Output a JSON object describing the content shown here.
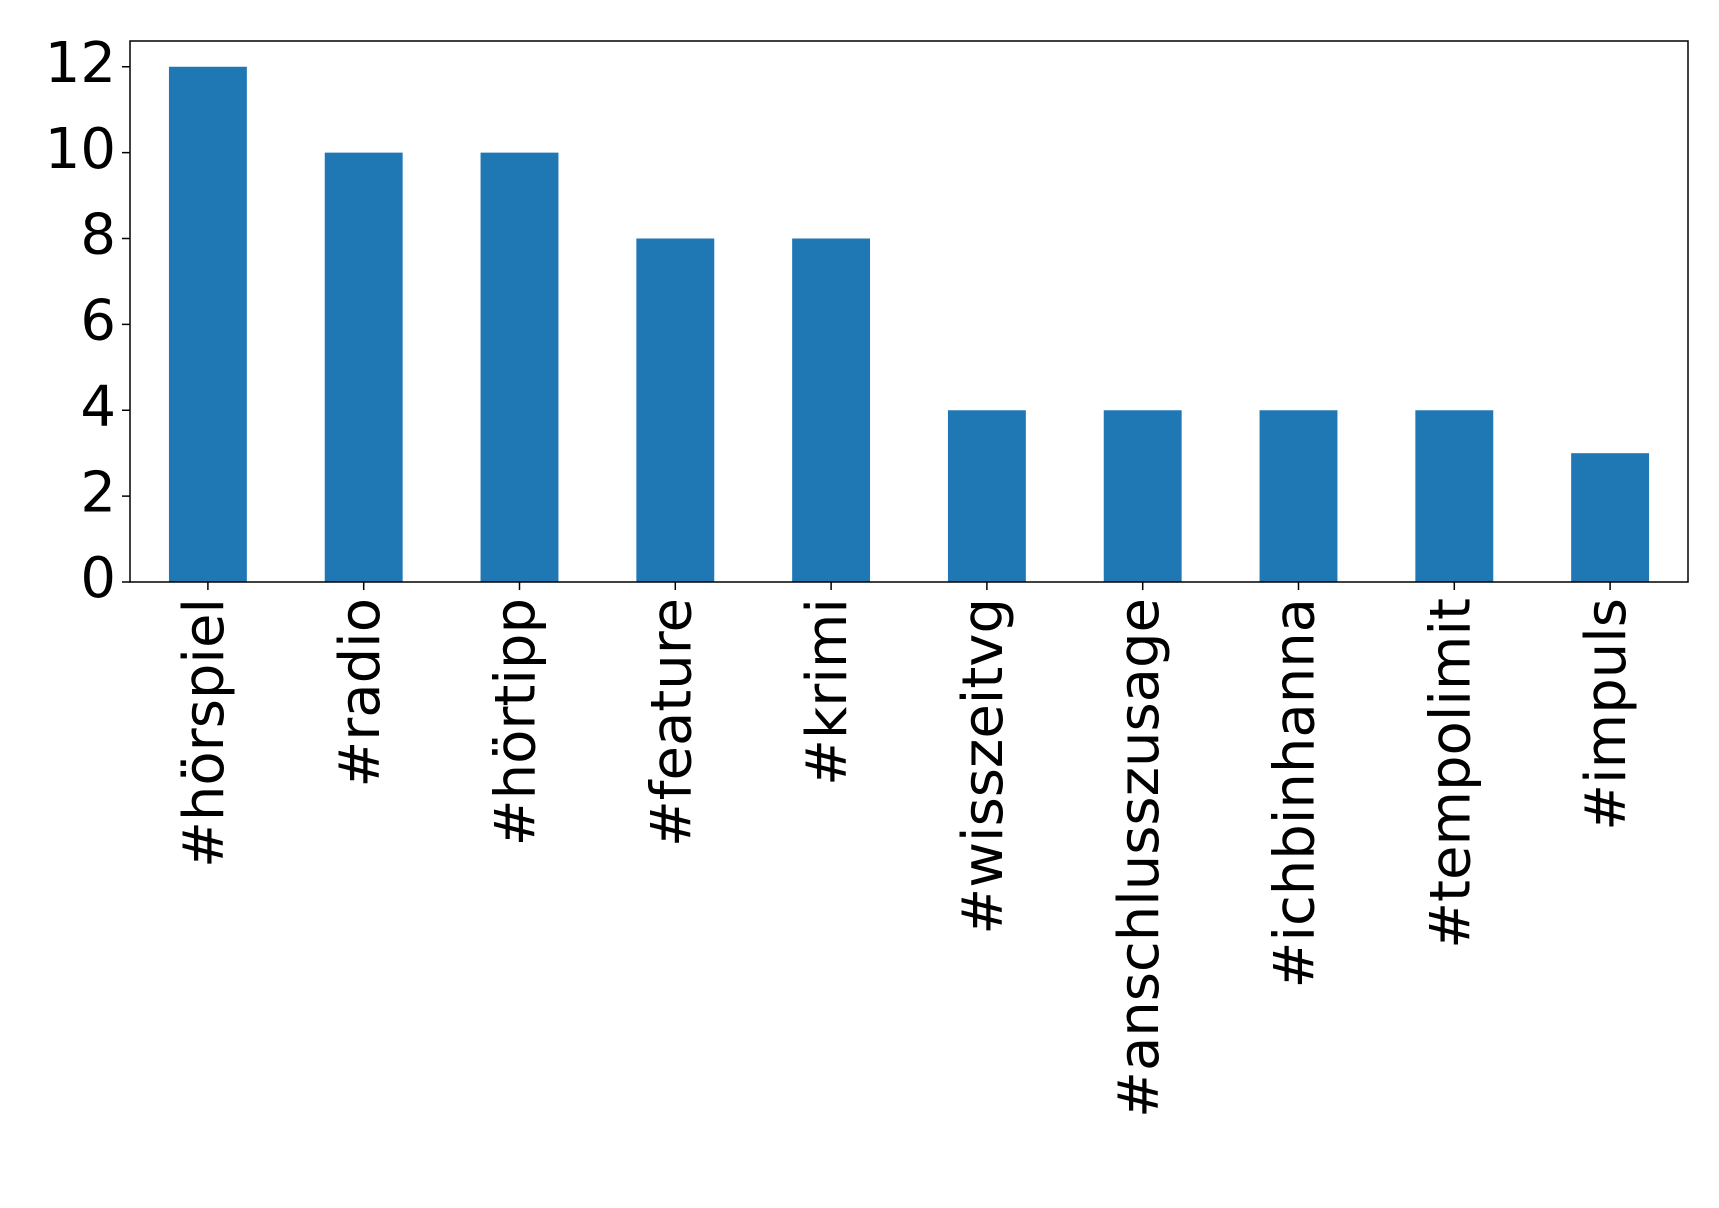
{
  "chart_data": {
    "type": "bar",
    "categories": [
      "#hörspiel",
      "#radio",
      "#hörtipp",
      "#feature",
      "#krimi",
      "#wisszeitvg",
      "#anschlusszusage",
      "#ichbinhanna",
      "#tempolimit",
      "#impuls"
    ],
    "values": [
      12,
      10,
      10,
      8,
      8,
      4,
      4,
      4,
      4,
      3
    ],
    "color": "#1f77b4",
    "ylim": [
      0,
      12.6
    ],
    "yticks": [
      0,
      2,
      4,
      6,
      8,
      10,
      12
    ]
  }
}
